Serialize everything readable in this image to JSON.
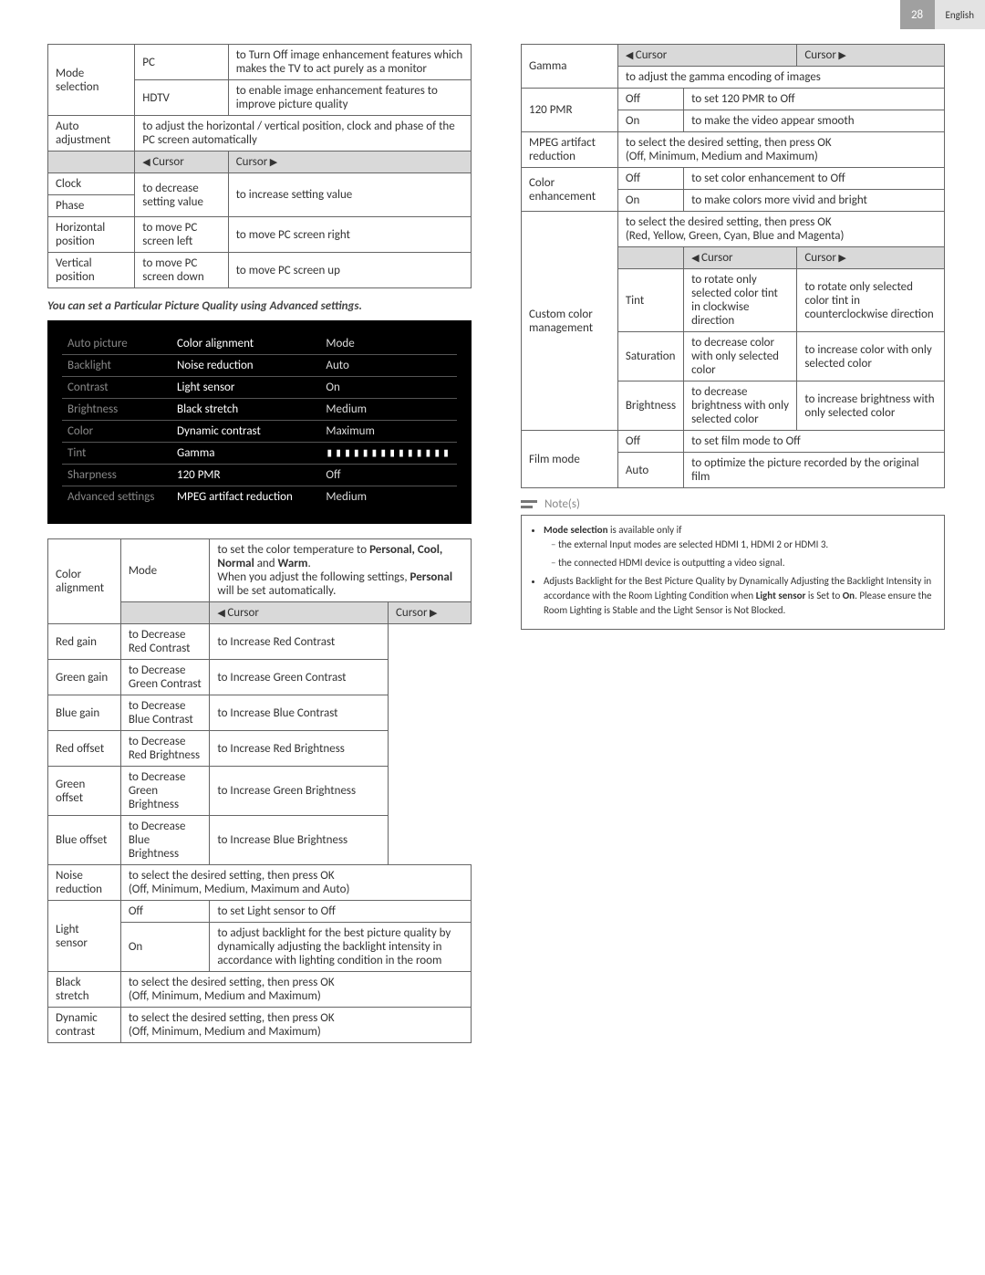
{
  "header": {
    "page": "28",
    "language": "English"
  },
  "left": {
    "table1": {
      "modeSelection": "Mode selection",
      "pc": "PC",
      "pcDesc": "to Turn Off image enhancement features which makes the TV to act purely as a monitor",
      "hdtv": "HDTV",
      "hdtvDesc": "to enable image enhancement features to improve picture quality",
      "autoAdjustment": "Auto adjustment",
      "autoAdjustmentDesc": "to adjust the horizontal / vertical position, clock and phase of the PC screen automatically",
      "cursorLeft": "Cursor",
      "cursorRight": "Cursor",
      "clock": "Clock",
      "phase": "Phase",
      "decSetting": "to decrease setting value",
      "incSetting": "to increase setting value",
      "hpos": "Horizontal position",
      "hposLeft": "to move PC screen left",
      "hposRight": "to move PC screen right",
      "vpos": "Vertical position",
      "vposDown": "to move PC screen down",
      "vposUp": "to move PC screen up"
    },
    "caption": "You can set a Particular Picture Quality using Advanced settings.",
    "menu": {
      "rows": [
        [
          "Auto picture",
          "Color alignment",
          "Mode"
        ],
        [
          "Backlight",
          "Noise reduction",
          "Auto"
        ],
        [
          "Contrast",
          "Light sensor",
          "On"
        ],
        [
          "Brightness",
          "Black stretch",
          "Medium"
        ],
        [
          "Color",
          "Dynamic contrast",
          "Maximum"
        ],
        [
          "Tint",
          "Gamma",
          "SLIDER"
        ],
        [
          "Sharpness",
          "120 PMR",
          "Off"
        ],
        [
          "Advanced settings",
          "MPEG artifact reduction",
          "Medium"
        ]
      ]
    },
    "table2": {
      "colorAlignment": "Color alignment",
      "mode": "Mode",
      "modeDesc1": "to set the color temperature to ",
      "modeDescBold": "Personal, Cool, Normal",
      "modeDescAnd": " and ",
      "modeDescWarm": "Warm",
      "modeDesc2": "When you adjust the following settings, ",
      "modeDescPersonal": "Personal",
      "modeDesc3": " will be set automatically.",
      "cursorLeft": "Cursor",
      "cursorRight": "Cursor",
      "rows": [
        [
          "Red gain",
          "to Decrease Red Contrast",
          "to Increase Red Contrast"
        ],
        [
          "Green gain",
          "to Decrease Green Contrast",
          "to Increase Green Contrast"
        ],
        [
          "Blue gain",
          "to Decrease Blue Contrast",
          "to Increase Blue Contrast"
        ],
        [
          "Red offset",
          "to Decrease Red Brightness",
          "to Increase Red Brightness"
        ],
        [
          "Green offset",
          "to Decrease Green Brightness",
          "to Increase Green Brightness"
        ],
        [
          "Blue offset",
          "to Decrease Blue Brightness",
          "to Increase Blue Brightness"
        ]
      ],
      "noiseReduction": "Noise reduction",
      "noiseReductionDesc": "to select the desired setting, then press OK\n(Off, Minimum, Medium, Maximum and Auto)",
      "lightSensor": "Light sensor",
      "lsOff": "Off",
      "lsOffDesc": "to set Light sensor to Off",
      "lsOn": "On",
      "lsOnDesc": "to adjust backlight for the best picture quality by dynamically adjusting the backlight intensity in accordance with lighting condition in the room",
      "blackStretch": "Black stretch",
      "blackStretchDesc": "to select the desired setting, then press OK\n(Off, Minimum, Medium and Maximum)",
      "dynamicContrast": "Dynamic contrast",
      "dynamicContrastDesc": "to select the desired setting, then press OK\n(Off, Minimum, Medium and Maximum)"
    }
  },
  "right": {
    "table": {
      "gamma": "Gamma",
      "cursorLeft": "Cursor",
      "cursorRight": "Cursor",
      "gammaDesc": "to adjust the gamma encoding of images",
      "pmr": "120 PMR",
      "pmrOff": "Off",
      "pmrOffDesc": "to set 120 PMR to Off",
      "pmrOn": "On",
      "pmrOnDesc": "to make the video appear smooth",
      "mpeg": "MPEG artifact reduction",
      "mpegDesc": "to select the desired setting, then press OK\n(Off, Minimum, Medium and Maximum)",
      "colorEnh": "Color enhancement",
      "ceOff": "Off",
      "ceOffDesc": "to set color enhancement to Off",
      "ceOn": "On",
      "ceOnDesc": "to make colors more vivid and bright",
      "ccm": "Custom color management",
      "ccmDesc": "to select the desired setting, then press OK\n(Red, Yellow, Green, Cyan, Blue and Magenta)",
      "ccmCursorLeft": "Cursor",
      "ccmCursorRight": "Cursor",
      "tint": "Tint",
      "tintL": "to rotate only selected color tint in clockwise direction",
      "tintR": "to rotate only selected color tint in counterclockwise direction",
      "sat": "Saturation",
      "satL": "to decrease color with only selected color",
      "satR": "to increase color with only selected color",
      "bri": "Brightness",
      "briL": "to decrease brightness with only selected color",
      "briR": "to increase brightness with only selected color",
      "filmMode": "Film mode",
      "fmOff": "Off",
      "fmOffDesc": "to set film mode to Off",
      "fmAuto": "Auto",
      "fmAutoDesc": "to optimize the picture recorded by the original film"
    },
    "notesLabel": "Note(s)",
    "notes": {
      "n1a": "Mode selection",
      "n1b": " is available only if",
      "n1s1": "the external Input modes are selected HDMI 1, HDMI 2 or HDMI 3.",
      "n1s2": "the connected HDMI device is outputting a video signal.",
      "n2a": "Adjusts Backlight for the Best Picture Quality by Dynamically Adjusting the Backlight Intensity in accordance with the Room Lighting Condition when ",
      "n2b": "Light sensor",
      "n2c": " is Set to ",
      "n2d": "On",
      "n2e": ". Please ensure the Room Lighting is Stable and the Light Sensor is Not Blocked."
    }
  }
}
